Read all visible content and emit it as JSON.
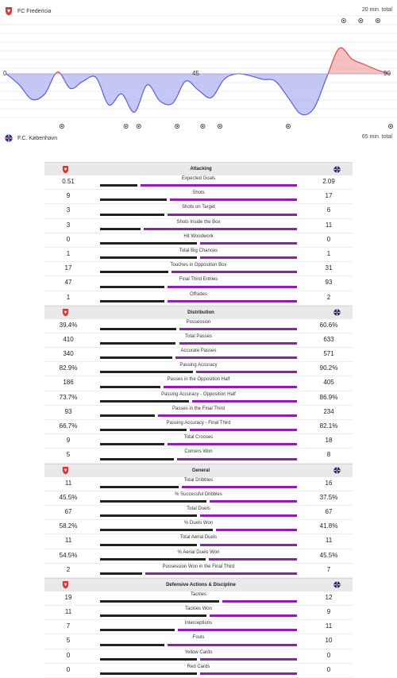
{
  "momentum": {
    "home_team": "FC Fredericia",
    "home_total": "20 min. total",
    "away_team": "F.C. København",
    "away_total": "65 min. total",
    "axis_labels": [
      "0",
      "45",
      "90"
    ],
    "home_color": "#e04a4a",
    "away_color": "#5a5fe0"
  },
  "chart_data": {
    "type": "area",
    "x": [
      0,
      3,
      6,
      9,
      12,
      15,
      18,
      21,
      24,
      27,
      30,
      33,
      36,
      39,
      42,
      45,
      48,
      51,
      54,
      57,
      60,
      63,
      66,
      69,
      72,
      75,
      78,
      81,
      84,
      87,
      90
    ],
    "values": [
      0,
      -12,
      -28,
      -22,
      2,
      -16,
      -8,
      -4,
      -34,
      -22,
      -42,
      -12,
      -30,
      -32,
      -8,
      -18,
      -26,
      -6,
      0,
      -2,
      -6,
      -8,
      -26,
      -44,
      -38,
      -4,
      28,
      16,
      10,
      4,
      0
    ],
    "xlim": [
      0,
      90
    ],
    "home_events": [
      79,
      83,
      87
    ],
    "away_events": [
      13,
      28,
      31,
      40,
      46,
      50,
      66,
      90
    ]
  },
  "stats": [
    {
      "title": "Attacking",
      "rows": [
        {
          "label": "Expected Goals",
          "home": "0.51",
          "away": "2.09",
          "h": 0.51,
          "a": 2.09
        },
        {
          "label": "Shots",
          "home": "9",
          "away": "17",
          "h": 9,
          "a": 17
        },
        {
          "label": "Shots on Target",
          "home": "3",
          "away": "6",
          "h": 3,
          "a": 6
        },
        {
          "label": "Shots Inside the Box",
          "home": "3",
          "away": "11",
          "h": 3,
          "a": 11
        },
        {
          "label": "Hit Woodwork",
          "home": "0",
          "away": "0",
          "h": 0,
          "a": 0
        },
        {
          "label": "Total Big Chances",
          "home": "1",
          "away": "1",
          "h": 1,
          "a": 1
        },
        {
          "label": "Touches in Opposition Box",
          "home": "17",
          "away": "31",
          "h": 17,
          "a": 31
        },
        {
          "label": "Final Third Entries",
          "home": "47",
          "away": "93",
          "h": 47,
          "a": 93
        },
        {
          "label": "Offsides",
          "home": "1",
          "away": "2",
          "h": 1,
          "a": 2
        }
      ]
    },
    {
      "title": "Distribution",
      "rows": [
        {
          "label": "Possession",
          "home": "39.4%",
          "away": "60.6%",
          "h": 39.4,
          "a": 60.6
        },
        {
          "label": "Total Passes",
          "home": "410",
          "away": "633",
          "h": 410,
          "a": 633
        },
        {
          "label": "Accurate Passes",
          "home": "340",
          "away": "571",
          "h": 340,
          "a": 571
        },
        {
          "label": "Passing Accuracy",
          "home": "82.9%",
          "away": "90.2%",
          "h": 82.9,
          "a": 90.2
        },
        {
          "label": "Passes in the Opposition Half",
          "home": "186",
          "away": "405",
          "h": 186,
          "a": 405
        },
        {
          "label": "Passing Accuracy - Opposition Half",
          "home": "73.7%",
          "away": "86.9%",
          "h": 73.7,
          "a": 86.9
        },
        {
          "label": "Passes in the Final Third",
          "home": "93",
          "away": "234",
          "h": 93,
          "a": 234
        },
        {
          "label": "Passing Accuracy - Final Third",
          "home": "66.7%",
          "away": "82.1%",
          "h": 66.7,
          "a": 82.1
        },
        {
          "label": "Total Crosses",
          "home": "9",
          "away": "18",
          "h": 9,
          "a": 18
        },
        {
          "label": "Corners Won",
          "home": "5",
          "away": "8",
          "h": 5,
          "a": 8
        }
      ]
    },
    {
      "title": "General",
      "rows": [
        {
          "label": "Total Dribbles",
          "home": "11",
          "away": "16",
          "h": 11,
          "a": 16
        },
        {
          "label": "% Successful Dribbles",
          "home": "45.5%",
          "away": "37.5%",
          "h": 45.5,
          "a": 37.5
        },
        {
          "label": "Total Duels",
          "home": "67",
          "away": "67",
          "h": 67,
          "a": 67
        },
        {
          "label": "% Duels Won",
          "home": "58.2%",
          "away": "41.8%",
          "h": 58.2,
          "a": 41.8
        },
        {
          "label": "Total Aerial Duels",
          "home": "11",
          "away": "11",
          "h": 11,
          "a": 11
        },
        {
          "label": "% Aerial Duels Won",
          "home": "54.5%",
          "away": "45.5%",
          "h": 54.5,
          "a": 45.5
        },
        {
          "label": "Possession Won in the Final Third",
          "home": "2",
          "away": "7",
          "h": 2,
          "a": 7
        }
      ]
    },
    {
      "title": "Defensive Actions & Discipline",
      "rows": [
        {
          "label": "Tackles",
          "home": "19",
          "away": "12",
          "h": 19,
          "a": 12
        },
        {
          "label": "Tackles Won",
          "home": "11",
          "away": "9",
          "h": 11,
          "a": 9
        },
        {
          "label": "Interceptions",
          "home": "7",
          "away": "11",
          "h": 7,
          "a": 11
        },
        {
          "label": "Fouls",
          "home": "5",
          "away": "10",
          "h": 5,
          "a": 10
        },
        {
          "label": "Yellow Cards",
          "home": "0",
          "away": "0",
          "h": 0,
          "a": 0
        },
        {
          "label": "Red Cards",
          "home": "0",
          "away": "0",
          "h": 0,
          "a": 0
        }
      ]
    }
  ]
}
